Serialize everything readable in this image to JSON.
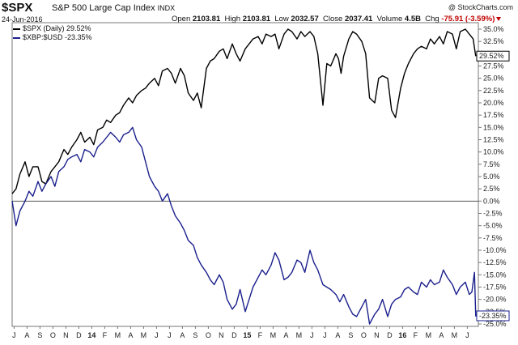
{
  "header": {
    "symbol": "$SPX",
    "name": "S&P 500 Large Cap Index",
    "exchange": "INDX",
    "date": "24-Jun-2016",
    "brand": "@ StockCharts.com",
    "open_label": "Open",
    "open": "2103.81",
    "high_label": "High",
    "high": "2103.81",
    "low_label": "Low",
    "low": "2032.57",
    "close_label": "Close",
    "close": "2037.41",
    "volume_label": "Volume",
    "volume": "4.5B",
    "chg_label": "Chg",
    "chg": "-75.91 (-3.59%)"
  },
  "legend": {
    "spx": "$SPX (Daily) 29.52%",
    "xbp": "$XBP:$USD -23.35%"
  },
  "colors": {
    "spx": "#000000",
    "xbp": "#1a1f8c",
    "zero_line": "#555555",
    "label_box": "#ffffff"
  },
  "chart_data": {
    "type": "line",
    "yticks": [
      "35.0%",
      "32.5%",
      "30.0%",
      "27.5%",
      "25.0%",
      "22.5%",
      "20.0%",
      "17.5%",
      "15.0%",
      "12.5%",
      "10.0%",
      "7.5%",
      "5.0%",
      "2.5%",
      "0.0%",
      "-2.5%",
      "-5.0%",
      "-7.5%",
      "-10.0%",
      "-12.5%",
      "-15.0%",
      "-17.5%",
      "-20.0%",
      "-22.5%",
      "-25.0%"
    ],
    "ylim": [
      -25,
      36
    ],
    "xlim": [
      0,
      36
    ],
    "x_ticks": [
      "J",
      "A",
      "S",
      "O",
      "N",
      "D",
      "14",
      "F",
      "M",
      "A",
      "M",
      "J",
      "J",
      "A",
      "S",
      "O",
      "N",
      "D",
      "15",
      "F",
      "M",
      "A",
      "M",
      "J",
      "J",
      "A",
      "S",
      "O",
      "N",
      "D",
      "16",
      "F",
      "M",
      "A",
      "M",
      "J"
    ],
    "bold_x_ticks": [
      "14",
      "15",
      "16"
    ],
    "end_labels": {
      "spx": "29.52%",
      "xbp": "-23.35%"
    },
    "series": [
      {
        "name": "$SPX (Daily)",
        "color": "#000000",
        "x": [
          0.0,
          0.3,
          0.6,
          1.0,
          1.3,
          1.6,
          2.0,
          2.3,
          2.6,
          3.0,
          3.3,
          3.6,
          4.0,
          4.3,
          4.6,
          5.0,
          5.3,
          5.6,
          6.0,
          6.3,
          6.6,
          7.0,
          7.3,
          7.6,
          8.0,
          8.3,
          8.6,
          9.0,
          9.3,
          9.6,
          10.0,
          10.3,
          10.6,
          11.0,
          11.3,
          11.6,
          12.0,
          12.3,
          12.6,
          13.0,
          13.3,
          13.6,
          14.0,
          14.3,
          14.6,
          15.0,
          15.3,
          15.6,
          16.0,
          16.3,
          16.6,
          17.0,
          17.3,
          17.6,
          18.0,
          18.3,
          18.6,
          19.0,
          19.3,
          19.6,
          20.0,
          20.3,
          20.6,
          21.0,
          21.3,
          21.6,
          22.0,
          22.3,
          22.6,
          23.0,
          23.3,
          23.6,
          24.0,
          24.3,
          24.6,
          25.0,
          25.2,
          25.4,
          25.6,
          26.0,
          26.3,
          26.6,
          27.0,
          27.3,
          27.6,
          28.0,
          28.3,
          28.6,
          29.0,
          29.3,
          29.6,
          30.0,
          30.3,
          30.6,
          31.0,
          31.3,
          31.6,
          32.0,
          32.3,
          32.6,
          33.0,
          33.3,
          33.6,
          34.0,
          34.3,
          34.6,
          35.0,
          35.3,
          35.6,
          35.8
        ],
        "y": [
          1.5,
          2.5,
          5.5,
          8.0,
          5.0,
          7.0,
          7.0,
          4.0,
          3.5,
          6.0,
          7.0,
          8.0,
          10.5,
          9.5,
          11.0,
          12.5,
          14.0,
          12.0,
          13.0,
          11.5,
          14.5,
          15.0,
          16.5,
          16.0,
          17.5,
          18.0,
          19.5,
          21.0,
          20.0,
          21.5,
          22.5,
          23.0,
          24.0,
          25.0,
          23.5,
          26.5,
          27.0,
          26.0,
          24.0,
          27.0,
          25.5,
          22.0,
          20.5,
          22.0,
          19.0,
          27.0,
          28.5,
          29.0,
          30.5,
          31.0,
          29.0,
          32.0,
          30.0,
          28.5,
          31.0,
          32.0,
          33.0,
          33.5,
          32.0,
          34.0,
          33.5,
          34.0,
          31.0,
          34.0,
          35.0,
          34.5,
          33.0,
          34.5,
          33.5,
          34.5,
          33.5,
          30.0,
          19.5,
          28.0,
          27.5,
          30.0,
          29.0,
          26.0,
          29.5,
          33.0,
          34.5,
          34.0,
          32.5,
          30.0,
          21.0,
          20.0,
          25.0,
          25.5,
          25.0,
          18.5,
          17.0,
          23.0,
          26.0,
          28.0,
          30.0,
          31.0,
          31.5,
          31.0,
          33.0,
          32.0,
          33.5,
          32.0,
          34.5,
          34.0,
          31.0,
          34.5,
          35.0,
          34.0,
          33.0,
          29.5
        ]
      },
      {
        "name": "$XBP:$USD",
        "color": "#1a1f8c",
        "x": [
          0.0,
          0.3,
          0.6,
          1.0,
          1.3,
          1.6,
          2.0,
          2.3,
          2.6,
          3.0,
          3.3,
          3.6,
          4.0,
          4.3,
          4.6,
          5.0,
          5.3,
          5.6,
          6.0,
          6.3,
          6.6,
          7.0,
          7.3,
          7.6,
          8.0,
          8.3,
          8.6,
          9.0,
          9.3,
          9.6,
          10.0,
          10.3,
          10.6,
          11.0,
          11.3,
          11.6,
          12.0,
          12.3,
          12.6,
          13.0,
          13.3,
          13.6,
          14.0,
          14.3,
          14.6,
          15.0,
          15.3,
          15.6,
          16.0,
          16.3,
          16.6,
          17.0,
          17.3,
          17.6,
          18.0,
          18.3,
          18.6,
          19.0,
          19.3,
          19.6,
          20.0,
          20.3,
          20.6,
          21.0,
          21.3,
          21.6,
          22.0,
          22.3,
          22.6,
          23.0,
          23.3,
          23.6,
          24.0,
          24.3,
          24.6,
          25.0,
          25.3,
          25.6,
          26.0,
          26.3,
          26.6,
          27.0,
          27.3,
          27.6,
          28.0,
          28.3,
          28.6,
          29.0,
          29.3,
          29.6,
          30.0,
          30.3,
          30.6,
          31.0,
          31.3,
          31.6,
          32.0,
          32.3,
          32.6,
          33.0,
          33.3,
          33.6,
          34.0,
          34.3,
          34.6,
          35.0,
          35.3,
          35.5,
          35.7,
          35.8
        ],
        "y": [
          0.0,
          -5.0,
          -2.0,
          0.0,
          2.0,
          1.0,
          4.0,
          2.0,
          3.5,
          5.0,
          3.0,
          6.0,
          7.0,
          8.5,
          9.0,
          9.5,
          8.0,
          10.5,
          10.0,
          9.0,
          11.0,
          12.0,
          13.0,
          14.0,
          13.0,
          12.0,
          13.5,
          14.0,
          15.0,
          12.5,
          11.0,
          8.0,
          5.0,
          3.0,
          2.0,
          0.0,
          1.5,
          -1.0,
          -3.0,
          -4.5,
          -6.0,
          -8.0,
          -9.0,
          -11.5,
          -13.0,
          -14.5,
          -16.0,
          -17.0,
          -15.0,
          -16.5,
          -20.0,
          -22.0,
          -21.0,
          -18.0,
          -22.5,
          -20.0,
          -17.5,
          -15.5,
          -14.0,
          -15.0,
          -13.0,
          -10.5,
          -12.0,
          -16.0,
          -15.5,
          -14.5,
          -12.0,
          -12.5,
          -14.5,
          -10.0,
          -12.5,
          -14.0,
          -17.0,
          -17.5,
          -18.0,
          -19.0,
          -20.5,
          -19.0,
          -21.5,
          -23.0,
          -23.5,
          -21.5,
          -20.0,
          -25.0,
          -23.0,
          -22.0,
          -20.0,
          -23.5,
          -21.0,
          -20.0,
          -19.5,
          -18.0,
          -17.5,
          -18.5,
          -19.0,
          -16.5,
          -17.5,
          -16.0,
          -17.0,
          -16.5,
          -14.0,
          -15.5,
          -17.0,
          -19.0,
          -17.5,
          -16.5,
          -19.0,
          -18.5,
          -14.5,
          -23.5
        ]
      }
    ]
  }
}
